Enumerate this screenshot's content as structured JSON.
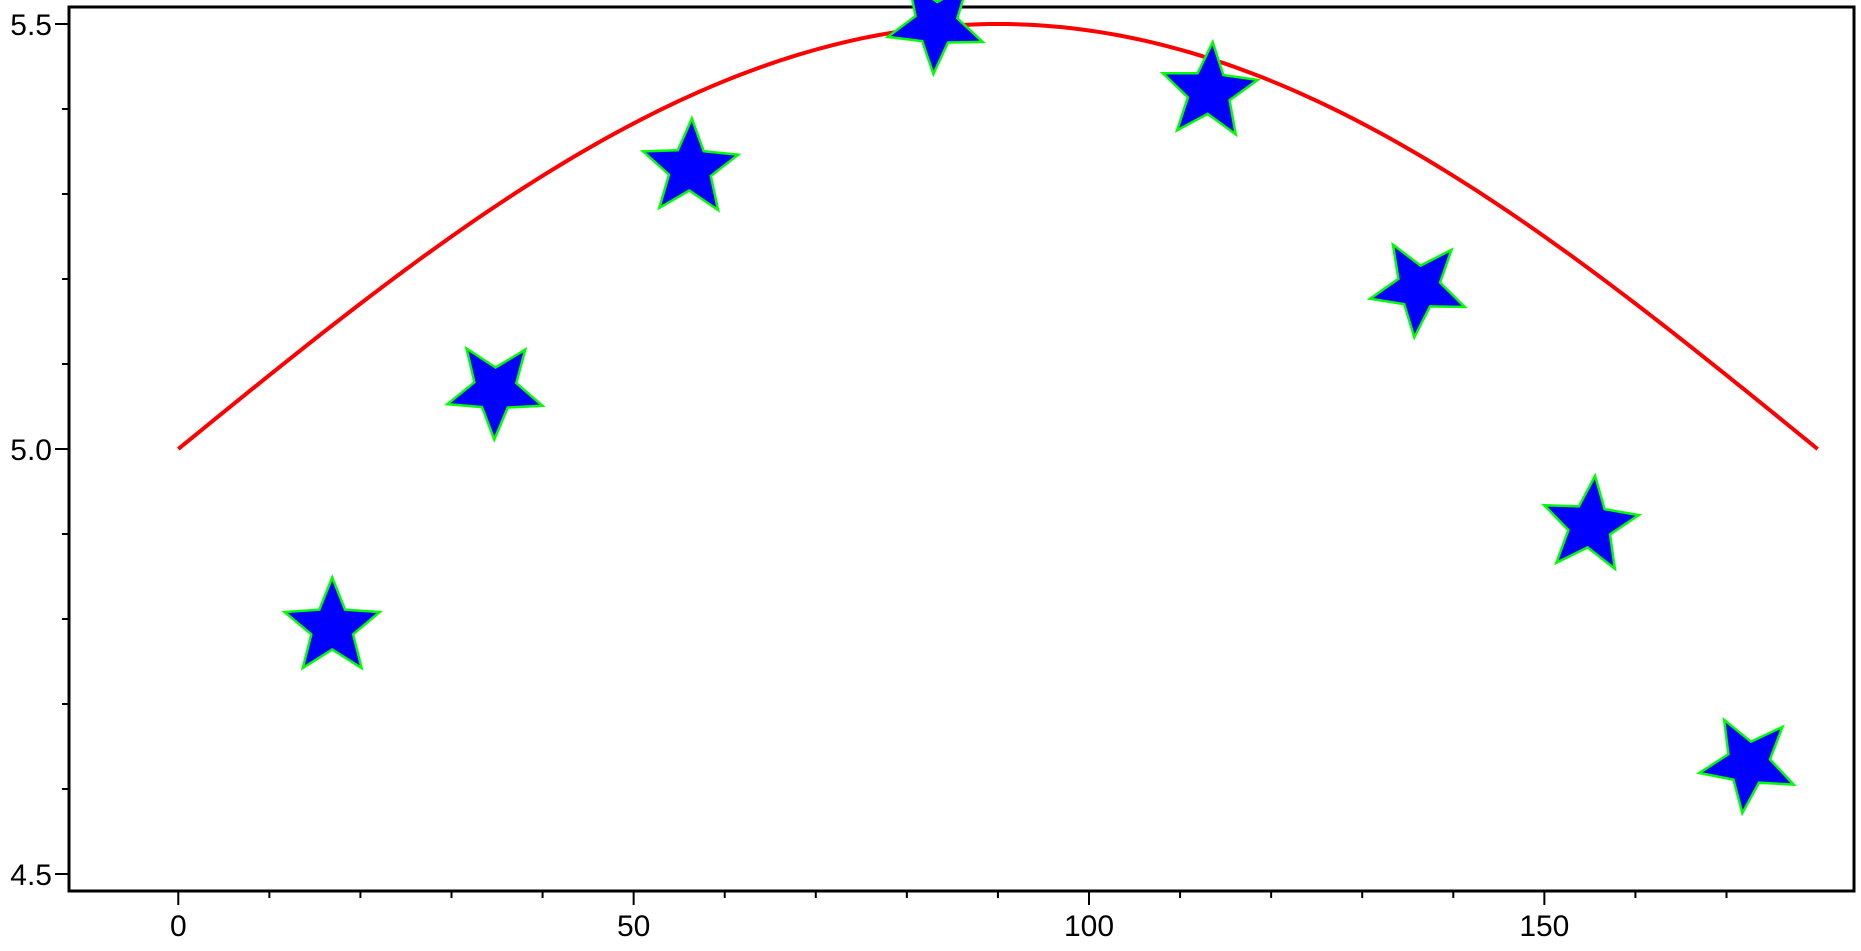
{
  "chart_data": {
    "type": "line",
    "title": "",
    "xlabel": "",
    "ylabel": "",
    "xlim": [
      -12,
      184
    ],
    "ylim": [
      4.48,
      5.52
    ],
    "x_ticks": [
      0,
      50,
      100,
      150
    ],
    "x_tick_labels": [
      "0",
      "50",
      "100",
      "150"
    ],
    "x_minor_ticks": [
      10,
      20,
      30,
      40,
      60,
      70,
      80,
      90,
      110,
      120,
      130,
      140,
      160,
      170
    ],
    "y_ticks": [
      4.5,
      5.0,
      5.5
    ],
    "y_tick_labels": [
      "4.5",
      "5.0",
      "5.5"
    ],
    "y_minor_ticks": [
      4.6,
      4.7,
      4.8,
      4.9,
      5.1,
      5.2,
      5.3,
      5.4
    ],
    "grid": false,
    "series": [
      {
        "kind": "line",
        "function": "5 + 0.5*sin(x degrees)",
        "x_range": [
          0,
          180
        ],
        "color": "#ff0000"
      },
      {
        "kind": "scatter",
        "marker": "star",
        "fill_color": "#0000ff",
        "edge_color": "#00ff00",
        "x": [
          16.9,
          34.8,
          56.2,
          83.2,
          113.2,
          136.2,
          155.0,
          172.4
        ],
        "y": [
          4.79,
          5.07,
          5.33,
          5.5,
          5.42,
          5.19,
          4.91,
          4.63
        ]
      }
    ]
  }
}
